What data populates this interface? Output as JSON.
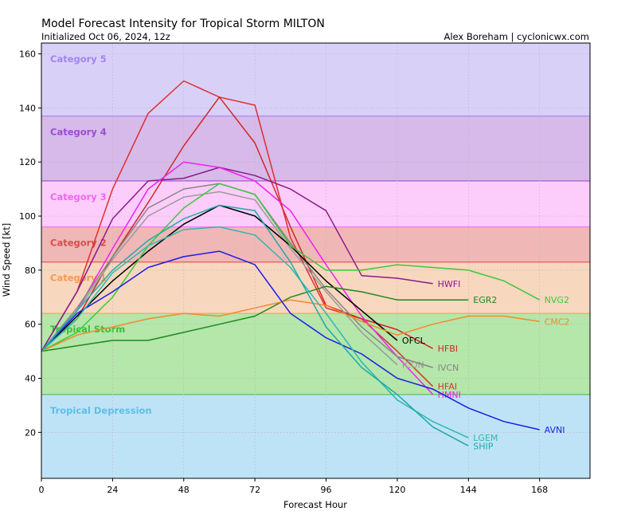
{
  "chart_data": {
    "type": "line",
    "title": "Model Forecast Intensity for Tropical Storm MILTON",
    "subtitle": "Initialized Oct 06, 2024, 12z",
    "credit": "Alex Boreham | cyclonicwx.com",
    "xlabel": "Forecast Hour",
    "ylabel": "Wind Speed [kt]",
    "xlim": [
      0,
      185
    ],
    "ylim": [
      3,
      164
    ],
    "xticks": [
      0,
      24,
      48,
      72,
      96,
      120,
      144,
      168
    ],
    "yticks": [
      20,
      40,
      60,
      80,
      100,
      120,
      140,
      160
    ],
    "grid": true,
    "bands": [
      {
        "name": "Tropical Depression",
        "from": 3,
        "to": 34,
        "fill": "#bfe3f6",
        "text": "#5bc0e6"
      },
      {
        "name": "Tropical Storm",
        "from": 34,
        "to": 64,
        "fill": "#b5e6aa",
        "text": "#3cbe3c"
      },
      {
        "name": "Category 1",
        "from": 64,
        "to": 83,
        "fill": "#f8d7bf",
        "text": "#f39a55"
      },
      {
        "name": "Category 2",
        "from": 83,
        "to": 96,
        "fill": "#f0b7b7",
        "text": "#d94d4d"
      },
      {
        "name": "Category 3",
        "from": 96,
        "to": 113,
        "fill": "#fccdfa",
        "text": "#f266f2"
      },
      {
        "name": "Category 4",
        "from": 113,
        "to": 137,
        "fill": "#d7b9ea",
        "text": "#9a4dd0"
      },
      {
        "name": "Category 5",
        "from": 137,
        "to": 164,
        "fill": "#d9d0f8",
        "text": "#a283f1"
      }
    ],
    "series": [
      {
        "name": "HFAI",
        "color": "#dd3030",
        "x": [
          0,
          12,
          24,
          36,
          48,
          60,
          72,
          84,
          96,
          108,
          120,
          132
        ],
        "values": [
          50,
          72,
          110,
          138,
          150,
          144,
          141,
          92,
          66,
          62,
          50,
          37
        ],
        "label_y": 37
      },
      {
        "name": "HFBI",
        "color": "#d02828",
        "x": [
          0,
          12,
          24,
          36,
          48,
          60,
          72,
          84,
          96,
          108,
          120,
          132
        ],
        "values": [
          50,
          62,
          85,
          105,
          126,
          144,
          127,
          96,
          67,
          62,
          58,
          51
        ],
        "label_y": 51
      },
      {
        "name": "HWFI",
        "color": "#8a1a8a",
        "x": [
          0,
          12,
          24,
          36,
          48,
          60,
          72,
          84,
          96,
          108,
          120,
          132
        ],
        "values": [
          50,
          72,
          99,
          113,
          114,
          118,
          115,
          110,
          102,
          78,
          77,
          75
        ],
        "label_y": 75
      },
      {
        "name": "HMNI",
        "color": "#f020f0",
        "x": [
          0,
          12,
          24,
          36,
          48,
          60,
          72,
          84,
          96,
          108,
          120,
          132
        ],
        "values": [
          50,
          65,
          88,
          110,
          120,
          118,
          113,
          102,
          82,
          63,
          48,
          34
        ],
        "label_y": 34
      },
      {
        "name": "ICON",
        "color": "#9a9a9a",
        "x": [
          0,
          12,
          24,
          36,
          48,
          60,
          72,
          84,
          96,
          108,
          120
        ],
        "values": [
          50,
          65,
          84,
          100,
          107,
          109,
          106,
          88,
          72,
          57,
          45
        ],
        "label_y": 45
      },
      {
        "name": "IVCN",
        "color": "#868686",
        "x": [
          0,
          12,
          24,
          36,
          48,
          60,
          72,
          84,
          96,
          108,
          120,
          132
        ],
        "values": [
          50,
          66,
          85,
          103,
          110,
          112,
          108,
          90,
          73,
          59,
          48,
          44
        ],
        "label_y": 44
      },
      {
        "name": "OFCL",
        "color": "#000000",
        "x": [
          0,
          12,
          24,
          36,
          48,
          60,
          72,
          84,
          96,
          108,
          120
        ],
        "values": [
          50,
          63,
          76,
          87,
          97,
          104,
          100,
          89,
          76,
          65,
          54
        ],
        "label_y": 54
      },
      {
        "name": "EGR2",
        "color": "#1d8a1d",
        "x": [
          0,
          12,
          24,
          36,
          48,
          60,
          72,
          84,
          96,
          108,
          120,
          132,
          144
        ],
        "values": [
          50,
          52,
          54,
          54,
          57,
          60,
          63,
          70,
          74,
          72,
          69,
          69,
          69
        ],
        "label_y": 69
      },
      {
        "name": "NVG2",
        "color": "#3bc93b",
        "x": [
          0,
          12,
          24,
          36,
          48,
          60,
          72,
          84,
          96,
          108,
          120,
          132,
          144,
          156,
          168
        ],
        "values": [
          50,
          57,
          70,
          89,
          103,
          112,
          108,
          89,
          80,
          80,
          82,
          81,
          80,
          76,
          69
        ],
        "label_y": 69
      },
      {
        "name": "CMC2",
        "color": "#f28a30",
        "x": [
          0,
          12,
          24,
          36,
          48,
          60,
          72,
          84,
          96,
          108,
          120,
          132,
          144,
          156,
          168
        ],
        "values": [
          50,
          56,
          59,
          62,
          64,
          63,
          66,
          69,
          67,
          61,
          56,
          60,
          63,
          63,
          61
        ],
        "label_y": 61
      },
      {
        "name": "AVNI",
        "color": "#1c1ce6",
        "x": [
          0,
          12,
          24,
          36,
          48,
          60,
          72,
          84,
          96,
          108,
          120,
          132,
          144,
          156,
          168
        ],
        "values": [
          50,
          64,
          72,
          81,
          85,
          87,
          82,
          64,
          55,
          49,
          40,
          36,
          29,
          24,
          21
        ],
        "label_y": 21
      },
      {
        "name": "LGEM",
        "color": "#2abab0",
        "x": [
          0,
          12,
          24,
          36,
          48,
          60,
          72,
          84,
          96,
          108,
          120,
          132,
          144
        ],
        "values": [
          50,
          62,
          79,
          89,
          95,
          96,
          93,
          81,
          64,
          46,
          32,
          24,
          18
        ],
        "label_y": 18
      },
      {
        "name": "SHIP",
        "color": "#20a8a8",
        "x": [
          0,
          12,
          24,
          36,
          48,
          60,
          72,
          84,
          96,
          108,
          120,
          132,
          144
        ],
        "values": [
          50,
          65,
          80,
          91,
          99,
          104,
          102,
          83,
          59,
          44,
          34,
          22,
          15
        ],
        "label_y": 15
      }
    ]
  }
}
